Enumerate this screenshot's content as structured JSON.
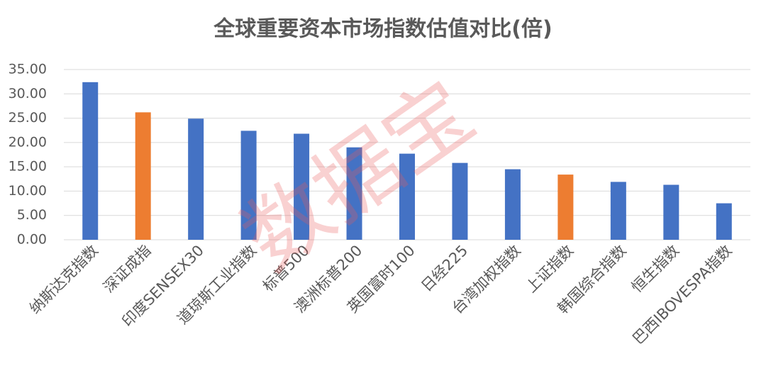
{
  "chart_data": {
    "type": "bar",
    "title": "全球重要资本市场指数估值对比(倍)",
    "watermark": "数据宝",
    "categories": [
      "纳斯达克指数",
      "深证成指",
      "印度SENSEX30",
      "道琼斯工业指数",
      "标普500",
      "澳洲标普200",
      "英国富时100",
      "日经225",
      "台湾加权指数",
      "上证指数",
      "韩国综合指数",
      "恒生指数",
      "巴西IBOVESPA指数"
    ],
    "values": [
      32.4,
      26.2,
      24.9,
      22.4,
      21.8,
      19.0,
      17.7,
      15.8,
      14.5,
      13.4,
      11.9,
      11.3,
      7.5
    ],
    "colors": [
      "#4472c4",
      "#ed7d31",
      "#4472c4",
      "#4472c4",
      "#4472c4",
      "#4472c4",
      "#4472c4",
      "#4472c4",
      "#4472c4",
      "#ed7d31",
      "#4472c4",
      "#4472c4",
      "#4472c4"
    ],
    "ylim": [
      0,
      35
    ],
    "yticks": [
      {
        "value": 0,
        "label": "0.00"
      },
      {
        "value": 5,
        "label": "5.00"
      },
      {
        "value": 10,
        "label": "10.00"
      },
      {
        "value": 15,
        "label": "15.00"
      },
      {
        "value": 20,
        "label": "20.00"
      },
      {
        "value": 25,
        "label": "25.00"
      },
      {
        "value": 30,
        "label": "30.00"
      },
      {
        "value": 35,
        "label": "35.00"
      }
    ],
    "grid": true
  }
}
